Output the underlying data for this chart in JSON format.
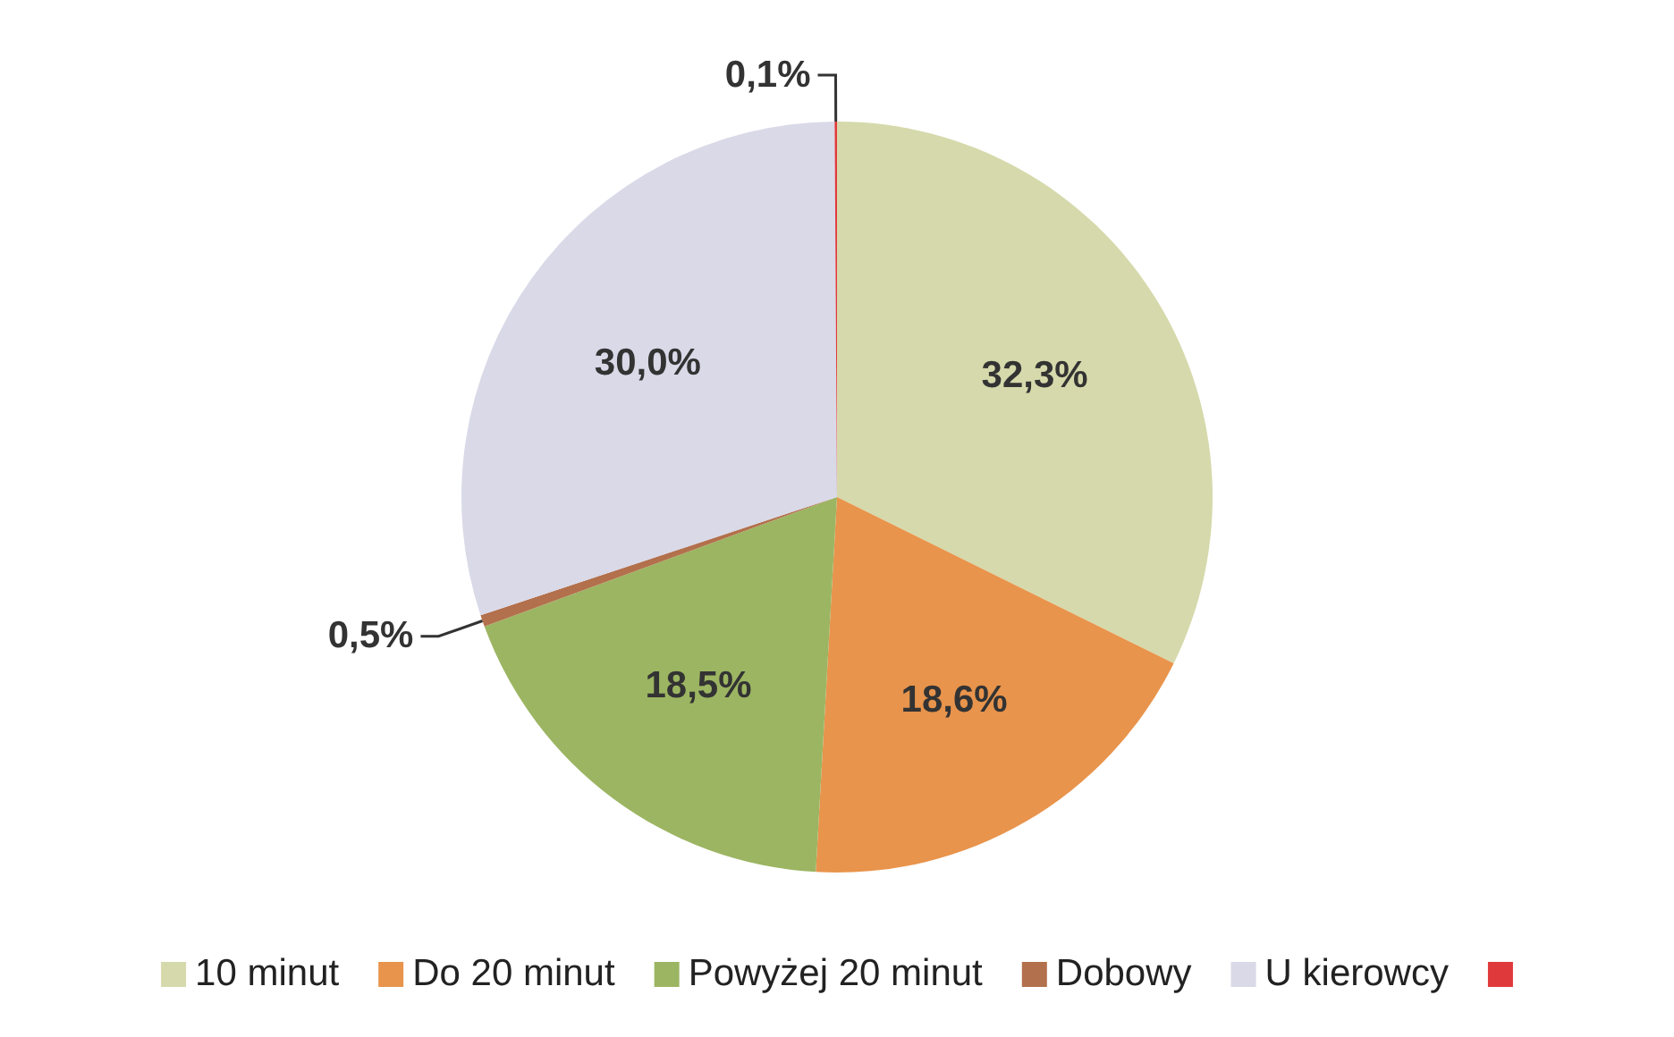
{
  "chart_data": {
    "type": "pie",
    "categories": [
      "10 minut",
      "Do 20 minut",
      "Powyżej 20 minut",
      "Dobowy",
      "U kierowcy",
      null
    ],
    "values": [
      32.3,
      18.6,
      18.5,
      0.5,
      30.0,
      0.1
    ],
    "colors": [
      "#d6d9ab",
      "#e8944c",
      "#9cb562",
      "#b2704c",
      "#d9d9e8",
      "#e0393c"
    ],
    "value_labels": [
      "32,3%",
      "18,6%",
      "18,5%",
      "0,5%",
      "30,0%",
      "0,1%"
    ],
    "legend": "bottom"
  }
}
